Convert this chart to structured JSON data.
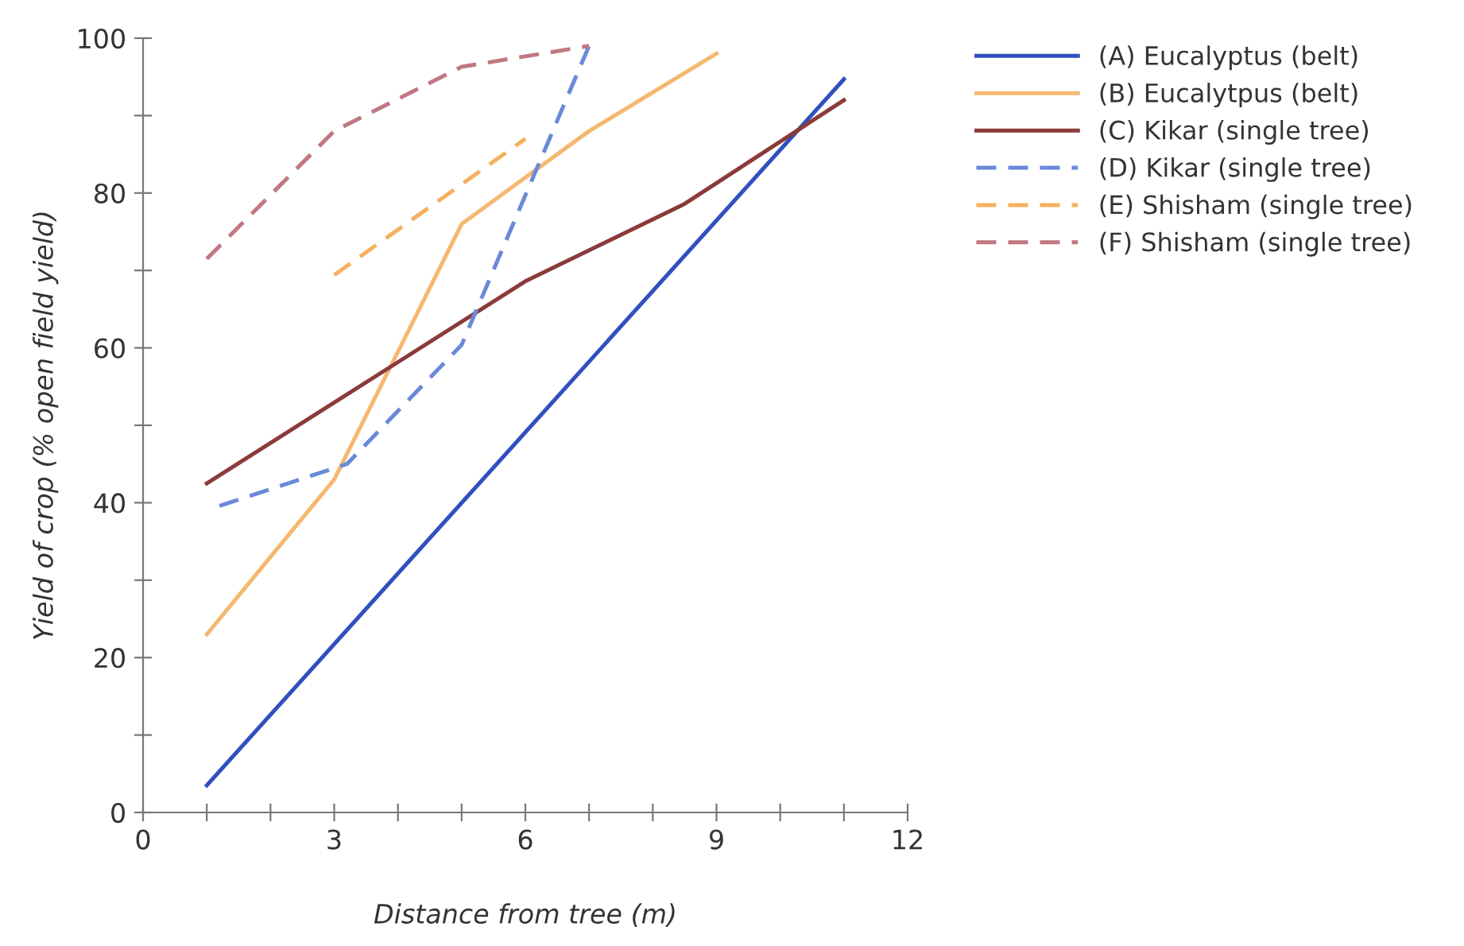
{
  "chart_data": {
    "type": "line",
    "xlabel": "Distance from tree (m)",
    "ylabel": "Yield of crop (% open field yield)",
    "xlim": [
      0,
      12
    ],
    "xticks": [
      0,
      {
        "value": 1,
        "label": null
      },
      {
        "value": 2,
        "label": null
      },
      3,
      {
        "value": 4,
        "label": null
      },
      {
        "value": 5,
        "label": null
      },
      6,
      {
        "value": 7,
        "label": null
      },
      {
        "value": 8,
        "label": null
      },
      9,
      {
        "value": 10,
        "label": null
      },
      {
        "value": 11,
        "label": null
      },
      12
    ],
    "ylim": [
      0,
      100
    ],
    "yticks": [
      0,
      {
        "value": 10,
        "label": null
      },
      20,
      {
        "value": 30,
        "label": null
      },
      40,
      {
        "value": 50,
        "label": null
      },
      60,
      {
        "value": 70,
        "label": null
      },
      80,
      {
        "value": 90,
        "label": null
      },
      100
    ],
    "grid": false,
    "legend": "top right",
    "marker": "none",
    "series": [
      {
        "name": "(A) Eucalyptus (belt)",
        "color": "#3050c0",
        "line_style": "solid",
        "x": [
          1,
          11
        ],
        "values": [
          3.5,
          94.7
        ]
      },
      {
        "name": "(B) Eucalytpus (belt)",
        "color": "#f5b870",
        "line_style": "solid",
        "x": [
          1,
          3,
          5,
          7,
          9
        ],
        "values": [
          23,
          43,
          76,
          88,
          98
        ]
      },
      {
        "name": "(C) Kikar (single tree)",
        "color": "#8b3a3a",
        "line_style": "solid",
        "x": [
          1,
          6,
          8.5,
          11
        ],
        "values": [
          42.5,
          68.6,
          78.6,
          92
        ]
      },
      {
        "name": "(D) Kikar (single tree)",
        "color": "#6a8ad8",
        "line_style": "dashed",
        "x": [
          1.2,
          3.2,
          5,
          7
        ],
        "values": [
          39.6,
          45,
          60.4,
          99
        ]
      },
      {
        "name": "(E) Shisham (single tree)",
        "color": "#f5b060",
        "line_style": "dashed",
        "x": [
          3,
          6
        ],
        "values": [
          69.4,
          87
        ]
      },
      {
        "name": "(F) Shisham (single tree)",
        "color": "#c07880",
        "line_style": "dashed",
        "x": [
          1,
          3,
          5,
          7
        ],
        "values": [
          71.5,
          88,
          96.3,
          99
        ]
      }
    ]
  }
}
